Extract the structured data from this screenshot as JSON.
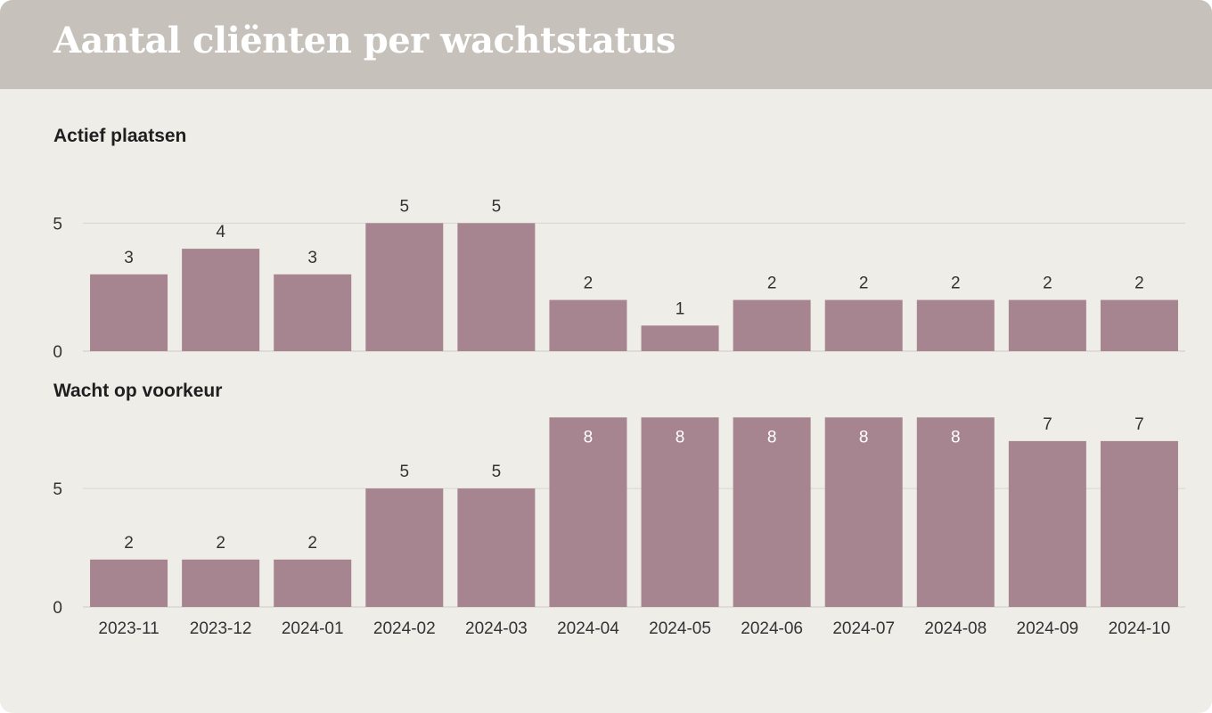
{
  "title": "Aantal cliënten per wachtstatus",
  "chart_data": {
    "type": "bar",
    "categories": [
      "2023-11",
      "2023-12",
      "2024-01",
      "2024-02",
      "2024-03",
      "2024-04",
      "2024-05",
      "2024-06",
      "2024-07",
      "2024-08",
      "2024-09",
      "2024-10"
    ],
    "panels": [
      {
        "title": "Actief plaatsen",
        "values": [
          3,
          4,
          3,
          5,
          5,
          2,
          1,
          2,
          2,
          2,
          2,
          2
        ],
        "ylim": [
          0,
          5.5
        ],
        "yticks": [
          0,
          5
        ]
      },
      {
        "title": "Wacht op voorkeur",
        "values": [
          2,
          2,
          2,
          5,
          5,
          8,
          8,
          8,
          8,
          8,
          7,
          7
        ],
        "ylim": [
          0,
          8.2
        ],
        "yticks": [
          0,
          5
        ]
      }
    ],
    "bar_color": "#a68591",
    "grid": true,
    "legend": "none"
  }
}
